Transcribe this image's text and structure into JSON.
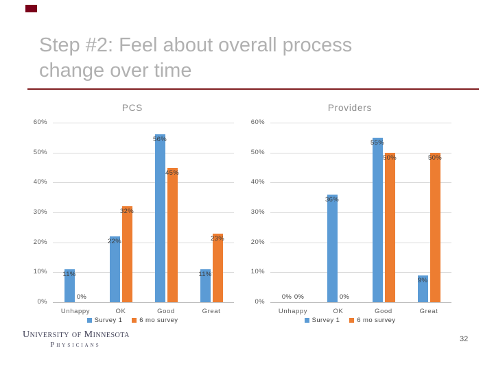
{
  "slide": {
    "title_line1": "Step #2: Feel about overall process",
    "title_line2": "change over time",
    "page_number": "32"
  },
  "logo": {
    "line1": "University of Minnesota",
    "line2": "Physicians"
  },
  "colors": {
    "accent_maroon": "#7a0019",
    "underline_red": "#7f1d1f",
    "title_gray": "#b1b1b1",
    "series_blue": "#5b9bd5",
    "series_orange": "#ed7d31",
    "gridline": "#d9d9d9",
    "axis_text": "#595959",
    "data_label_text": "#3b3b3b"
  },
  "chart_data": [
    {
      "type": "bar",
      "title": "PCS",
      "categories": [
        "Unhappy",
        "OK",
        "Good",
        "Great"
      ],
      "series": [
        {
          "name": "Survey 1",
          "color": "#5b9bd5",
          "values": [
            11,
            22,
            56,
            11
          ],
          "labels": [
            "11%",
            "22%",
            "56%",
            "11%"
          ]
        },
        {
          "name": "6 mo survey",
          "color": "#ed7d31",
          "values": [
            0,
            32,
            45,
            23
          ],
          "labels": [
            "0%",
            "32%",
            "45%",
            "23%"
          ]
        }
      ],
      "ylim": [
        0,
        60
      ],
      "yticks": [
        "0%",
        "10%",
        "20%",
        "30%",
        "40%",
        "50%",
        "60%"
      ],
      "grid": true,
      "legend_position": "bottom"
    },
    {
      "type": "bar",
      "title": "Providers",
      "categories": [
        "Unhappy",
        "OK",
        "Good",
        "Great"
      ],
      "series": [
        {
          "name": "Survey 1",
          "color": "#5b9bd5",
          "values": [
            0,
            36,
            55,
            9
          ],
          "labels": [
            "0%",
            "36%",
            "55%",
            "9%"
          ]
        },
        {
          "name": "6 mo survey",
          "color": "#ed7d31",
          "values": [
            0,
            0,
            50,
            50
          ],
          "labels": [
            "0%",
            "0%",
            "50%",
            "50%"
          ]
        }
      ],
      "ylim": [
        0,
        60
      ],
      "yticks": [
        "0%",
        "10%",
        "20%",
        "30%",
        "40%",
        "50%",
        "60%"
      ],
      "grid": true,
      "legend_position": "bottom"
    }
  ]
}
